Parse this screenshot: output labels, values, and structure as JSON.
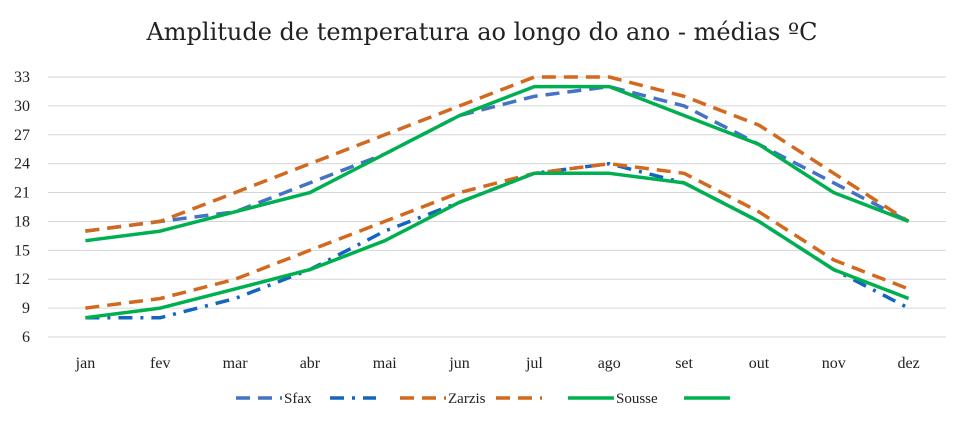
{
  "chart_data": {
    "type": "line",
    "title": "Amplitude de temperatura ao longo do ano - médias ºC",
    "categories": [
      "jan",
      "fev",
      "mar",
      "abr",
      "mai",
      "jun",
      "jul",
      "ago",
      "set",
      "out",
      "nov",
      "dez"
    ],
    "ylim": [
      6,
      33
    ],
    "yticks": [
      6,
      9,
      12,
      15,
      18,
      21,
      24,
      27,
      30,
      33
    ],
    "grid": true,
    "legend": "bottom",
    "series": [
      {
        "name": "Sfax",
        "style": "dash",
        "color": "#4472C4",
        "values": [
          17,
          18,
          19,
          22,
          25,
          29,
          31,
          32,
          30,
          26,
          22,
          18
        ]
      },
      {
        "name": "Sfax",
        "style": "dashdot",
        "color": "#1565C0",
        "values": [
          8,
          8,
          10,
          13,
          17,
          20,
          23,
          24,
          22,
          18,
          13,
          9
        ]
      },
      {
        "name": "Zarzis",
        "style": "dash",
        "color": "#D2691E",
        "values": [
          17,
          18,
          21,
          24,
          27,
          30,
          33,
          33,
          31,
          28,
          23,
          18
        ]
      },
      {
        "name": "Zarzis",
        "style": "dash",
        "color": "#D2691E",
        "values": [
          9,
          10,
          12,
          15,
          18,
          21,
          23,
          24,
          23,
          19,
          14,
          11
        ]
      },
      {
        "name": "Sousse",
        "style": "solid",
        "color": "#00B050",
        "values": [
          16,
          17,
          19,
          21,
          25,
          29,
          32,
          32,
          29,
          26,
          21,
          18
        ]
      },
      {
        "name": "Sousse",
        "style": "solid",
        "color": "#00B050",
        "values": [
          8,
          9,
          11,
          13,
          16,
          20,
          23,
          23,
          22,
          18,
          13,
          10
        ]
      }
    ]
  }
}
